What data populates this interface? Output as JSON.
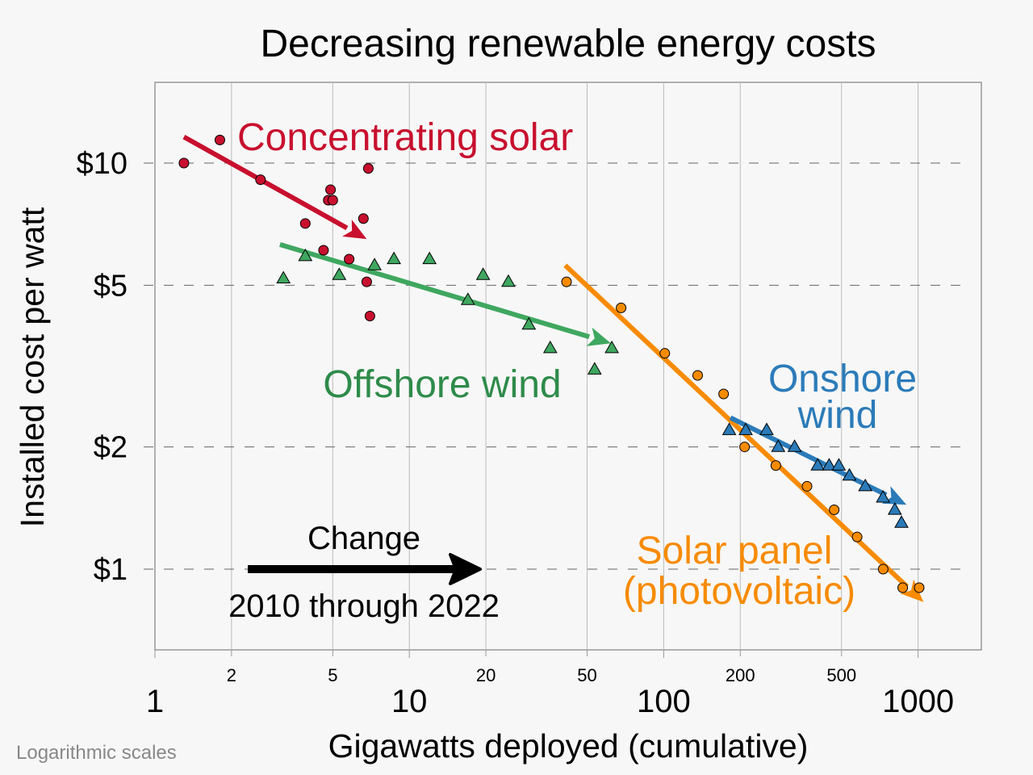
{
  "chart_data": {
    "type": "scatter",
    "title": "Decreasing renewable energy costs",
    "xlabel": "Gigawatts deployed (cumulative)",
    "ylabel": "Installed cost per watt",
    "xscale": "log",
    "yscale": "log",
    "xlim": [
      1,
      2400
    ],
    "ylim": [
      0.69,
      15
    ],
    "x_major_ticks": [
      {
        "value": 1,
        "label": "1"
      },
      {
        "value": 10,
        "label": "10"
      },
      {
        "value": 100,
        "label": "100"
      },
      {
        "value": 1000,
        "label": "1000"
      }
    ],
    "x_minor_ticks": [
      {
        "value": 2,
        "label": "2"
      },
      {
        "value": 5,
        "label": "5"
      },
      {
        "value": 20,
        "label": "20"
      },
      {
        "value": 50,
        "label": "50"
      },
      {
        "value": 200,
        "label": "200"
      },
      {
        "value": 500,
        "label": "500"
      }
    ],
    "y_ticks": [
      {
        "value": 10,
        "label": "$10"
      },
      {
        "value": 5,
        "label": "$5"
      },
      {
        "value": 2,
        "label": "$2"
      },
      {
        "value": 1,
        "label": "$1"
      }
    ],
    "grid": {
      "x": "solid vertical",
      "y": "dashed horizontal"
    },
    "series": [
      {
        "name": "Concentrating solar",
        "color": "#c8102e",
        "marker": "circle",
        "points": [
          [
            1.3,
            10.0
          ],
          [
            1.8,
            11.4
          ],
          [
            2.6,
            9.1
          ],
          [
            3.9,
            7.1
          ],
          [
            4.6,
            6.1
          ],
          [
            4.8,
            8.1
          ],
          [
            4.9,
            8.6
          ],
          [
            5.0,
            8.1
          ],
          [
            5.8,
            5.8
          ],
          [
            6.6,
            7.3
          ],
          [
            6.8,
            5.1
          ],
          [
            6.9,
            9.7
          ],
          [
            7.0,
            4.2
          ]
        ],
        "trend": [
          [
            1.3,
            11.6
          ],
          [
            6.8,
            6.5
          ]
        ]
      },
      {
        "name": "Offshore wind",
        "color": "#3fa75f",
        "marker": "triangle",
        "points": [
          [
            3.2,
            5.2
          ],
          [
            3.9,
            5.9
          ],
          [
            5.3,
            5.3
          ],
          [
            7.3,
            5.6
          ],
          [
            8.7,
            5.8
          ],
          [
            12,
            5.8
          ],
          [
            17,
            4.6
          ],
          [
            19.5,
            5.3
          ],
          [
            24.5,
            5.1
          ],
          [
            29.5,
            4.0
          ],
          [
            35.8,
            3.5
          ],
          [
            53.5,
            3.1
          ],
          [
            62.5,
            3.5
          ]
        ],
        "trend": [
          [
            3.1,
            6.3
          ],
          [
            62,
            3.6
          ]
        ]
      },
      {
        "name": "Solar panel (photovoltaic)",
        "color": "#f78b00",
        "marker": "circle",
        "points": [
          [
            41.5,
            5.1
          ],
          [
            68,
            4.4
          ],
          [
            101,
            3.4
          ],
          [
            136,
            3.0
          ],
          [
            172,
            2.7
          ],
          [
            208,
            2.0
          ],
          [
            276,
            1.8
          ],
          [
            366,
            1.6
          ],
          [
            468,
            1.4
          ],
          [
            576,
            1.2
          ],
          [
            729,
            1.0
          ],
          [
            870,
            0.9
          ],
          [
            1010,
            0.9
          ]
        ],
        "trend": [
          [
            41,
            5.6
          ],
          [
            1050,
            0.83
          ]
        ]
      },
      {
        "name": "Onshore wind",
        "color": "#2b7bb9",
        "marker": "triangle",
        "points": [
          [
            181,
            2.2
          ],
          [
            210,
            2.2
          ],
          [
            254,
            2.2
          ],
          [
            282,
            2.0
          ],
          [
            327,
            2.0
          ],
          [
            403,
            1.8
          ],
          [
            447,
            1.8
          ],
          [
            488,
            1.8
          ],
          [
            537,
            1.7
          ],
          [
            620,
            1.6
          ],
          [
            728,
            1.5
          ],
          [
            810,
            1.4
          ],
          [
            860,
            1.3
          ]
        ],
        "trend": [
          [
            183,
            2.36
          ],
          [
            900,
            1.44
          ]
        ]
      }
    ],
    "annotations": {
      "concentrating_solar": "Concentrating solar",
      "offshore_wind": "Offshore wind",
      "onshore_wind_line1": "Onshore",
      "onshore_wind_line2": "wind",
      "solar_panel_line1": "Solar panel",
      "solar_panel_line2": "(photovoltaic)",
      "change_label": "Change",
      "change_period": "2010 through 2022",
      "footnote": "Logarithmic scales"
    }
  }
}
